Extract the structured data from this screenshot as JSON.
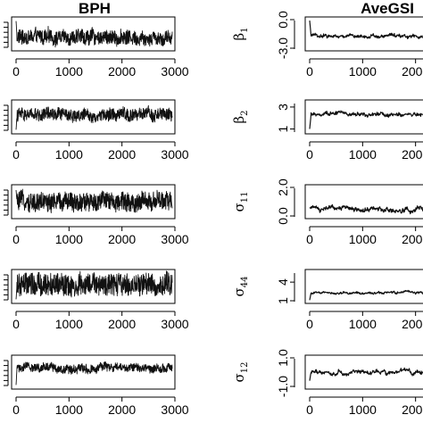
{
  "figure": {
    "columns": [
      {
        "title": "BPH"
      },
      {
        "title": "AveGSI"
      }
    ]
  },
  "chart_data": [
    {
      "type": "line",
      "column": "BPH",
      "panel": 1,
      "title": "",
      "ylabel": "",
      "xlim": [
        0,
        3000
      ],
      "xticks": [
        "0",
        "1000",
        "2000",
        "3000"
      ],
      "yticks": [],
      "series": [
        {
          "values": {
            "burn_in_start": 1.0,
            "mean": -0.25,
            "noise": 0.55,
            "samples": 3000
          }
        }
      ]
    },
    {
      "type": "line",
      "column": "BPH",
      "panel": 2,
      "title": "",
      "ylabel": "",
      "xlim": [
        0,
        3000
      ],
      "xticks": [
        "0",
        "1000",
        "2000",
        "3000"
      ],
      "yticks": [],
      "series": [
        {
          "values": {
            "burn_in_start": -1.0,
            "mean": 0.15,
            "noise": 0.45,
            "samples": 3000
          }
        }
      ]
    },
    {
      "type": "line",
      "column": "BPH",
      "panel": 3,
      "title": "",
      "ylabel": "",
      "xlim": [
        0,
        3000
      ],
      "xticks": [
        "0",
        "1000",
        "2000",
        "3000"
      ],
      "yticks": [],
      "series": [
        {
          "values": {
            "burn_in_start": 0.9,
            "mean": 0.0,
            "noise": 0.7,
            "samples": 3000
          }
        }
      ]
    },
    {
      "type": "line",
      "column": "BPH",
      "panel": 4,
      "title": "",
      "ylabel": "",
      "xlim": [
        0,
        3000
      ],
      "xticks": [
        "0",
        "1000",
        "2000",
        "3000"
      ],
      "yticks": [],
      "series": [
        {
          "values": {
            "burn_in_start": -1.0,
            "mean": 0.1,
            "noise": 0.85,
            "samples": 3000
          }
        }
      ]
    },
    {
      "type": "line",
      "column": "BPH",
      "panel": 5,
      "title": "",
      "ylabel": "",
      "xlim": [
        0,
        3000
      ],
      "xticks": [
        "0",
        "1000",
        "2000",
        "3000"
      ],
      "yticks": [],
      "series": [
        {
          "values": {
            "burn_in_start": -1.0,
            "mean": 0.35,
            "noise": 0.3,
            "samples": 3000
          }
        }
      ]
    },
    {
      "type": "line",
      "column": "AveGSI",
      "panel": 1,
      "title": "",
      "ylabel": "β1",
      "ylim": [
        -3.0,
        0.0
      ],
      "xlim": [
        0,
        3000
      ],
      "xticks": [
        "0",
        "1000",
        "2000"
      ],
      "yticks": [
        "-3.0",
        "0.0"
      ],
      "series": [
        {
          "values": {
            "burn_in_start": -0.1,
            "mean": -1.7,
            "noise": 0.12,
            "samples": 3000
          }
        }
      ]
    },
    {
      "type": "line",
      "column": "AveGSI",
      "panel": 2,
      "title": "",
      "ylabel": "β2",
      "ylim": [
        0.8,
        3.4
      ],
      "xlim": [
        0,
        3000
      ],
      "xticks": [
        "0",
        "1000",
        "2000"
      ],
      "yticks": [
        "1",
        "3"
      ],
      "series": [
        {
          "values": {
            "burn_in_start": 1.0,
            "mean": 2.3,
            "noise": 0.12,
            "samples": 3000
          }
        }
      ]
    },
    {
      "type": "line",
      "column": "AveGSI",
      "panel": 3,
      "title": "",
      "ylabel": "σ11",
      "ylim": [
        0.0,
        2.0
      ],
      "xlim": [
        0,
        3000
      ],
      "xticks": [
        "0",
        "1000",
        "2000"
      ],
      "yticks": [
        "0.0",
        "2.0"
      ],
      "series": [
        {
          "values": {
            "burn_in_start": 0.6,
            "mean": 0.5,
            "noise": 0.1,
            "samples": 3000
          }
        }
      ]
    },
    {
      "type": "line",
      "column": "AveGSI",
      "panel": 4,
      "title": "",
      "ylabel": "σ44",
      "ylim": [
        1.0,
        5.6
      ],
      "xlim": [
        0,
        3000
      ],
      "xticks": [
        "0",
        "1000",
        "2000"
      ],
      "yticks": [
        "1",
        "4"
      ],
      "series": [
        {
          "values": {
            "burn_in_start": 1.1,
            "mean": 2.3,
            "noise": 0.12,
            "samples": 3000
          }
        }
      ]
    },
    {
      "type": "line",
      "column": "AveGSI",
      "panel": 5,
      "title": "",
      "ylabel": "σ12",
      "ylim": [
        -1.0,
        1.0
      ],
      "xlim": [
        0,
        3000
      ],
      "xticks": [
        "0",
        "1000",
        "2000"
      ],
      "yticks": [
        "-1.0",
        "1.0"
      ],
      "series": [
        {
          "values": {
            "burn_in_start": -0.6,
            "mean": 0.05,
            "noise": 0.08,
            "samples": 3000
          }
        }
      ]
    }
  ]
}
